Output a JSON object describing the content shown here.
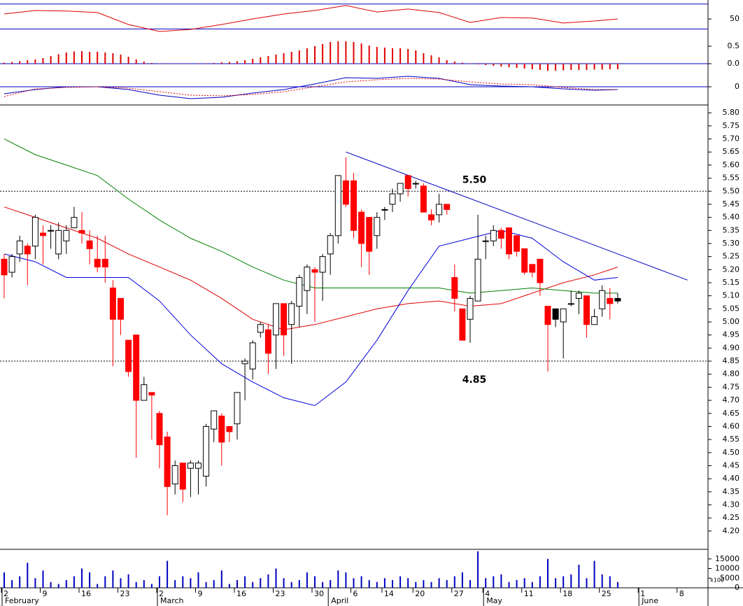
{
  "chart_data": [
    {
      "type": "line",
      "x": [
        0,
        4,
        8,
        12,
        16,
        20,
        24,
        28,
        32,
        36,
        40,
        44,
        48,
        52,
        56,
        60,
        64,
        68,
        72,
        76,
        79
      ],
      "ylim": [
        25,
        88
      ],
      "yticks": [
        50
      ],
      "hlines": [
        80,
        30
      ],
      "series": [
        {
          "color": "#e00000",
          "values": [
            60,
            67,
            66,
            63,
            39,
            25,
            29,
            39,
            50,
            60,
            67,
            77,
            64,
            70,
            63,
            43,
            53,
            52,
            42,
            46,
            50
          ]
        }
      ]
    },
    {
      "type": "bar",
      "color": "#e00000",
      "ylim": [
        -0.38,
        0.92
      ],
      "yticks": [
        {
          "value": 0.5,
          "label": "0.5"
        },
        {
          "value": 0,
          "label": "0.0"
        }
      ],
      "hlines": [
        0
      ],
      "values": [
        0.03,
        0.05,
        0.07,
        0.1,
        0.12,
        0.16,
        0.22,
        0.27,
        0.32,
        0.35,
        0.36,
        0.34,
        0.34,
        0.32,
        0.3,
        0.26,
        0.2,
        0.12,
        0.06,
        0.02,
        0.01,
        0,
        -0.01,
        -0.01,
        0,
        0.01,
        0.01,
        0.02,
        0.04,
        0.05,
        0.07,
        0.1,
        0.14,
        0.18,
        0.22,
        0.26,
        0.3,
        0.34,
        0.38,
        0.44,
        0.5,
        0.56,
        0.62,
        0.64,
        0.64,
        0.62,
        0.58,
        0.52,
        0.48,
        0.46,
        0.44,
        0.44,
        0.42,
        0.38,
        0.3,
        0.24,
        0.18,
        0.1,
        0.06,
        0.03,
        0.01,
        -0.02,
        -0.04,
        -0.06,
        -0.08,
        -0.1,
        -0.12,
        -0.14,
        -0.16,
        -0.18,
        -0.2,
        -0.2,
        -0.19,
        -0.18,
        -0.18,
        -0.18,
        -0.17,
        -0.17,
        -0.16,
        -0.16
      ]
    },
    {
      "type": "line",
      "x": [
        0,
        4,
        8,
        12,
        16,
        20,
        24,
        28,
        32,
        36,
        40,
        44,
        48,
        52,
        56,
        60,
        64,
        68,
        72,
        76,
        79
      ],
      "ylim": [
        -0.26,
        0.14
      ],
      "yticks": [
        0
      ],
      "hlines": [
        0
      ],
      "series": [
        {
          "color": "#0000c0",
          "values": [
            -0.1,
            -0.04,
            0,
            0,
            -0.04,
            -0.12,
            -0.17,
            -0.15,
            -0.09,
            -0.04,
            0.04,
            0.13,
            0.12,
            0.15,
            0.12,
            0.03,
            0.01,
            0,
            -0.03,
            -0.05,
            -0.04
          ]
        },
        {
          "color": "#e00000",
          "dash": true,
          "values": [
            -0.14,
            -0.03,
            -0.01,
            0,
            -0.02,
            -0.07,
            -0.12,
            -0.13,
            -0.11,
            -0.07,
            0,
            0.07,
            0.1,
            0.12,
            0.11,
            0.07,
            0.04,
            0.03,
            -0.01,
            -0.04,
            -0.04
          ]
        }
      ]
    },
    {
      "type": "candlestick",
      "categories": [
        "2",
        null,
        null,
        null,
        null,
        "9",
        null,
        null,
        null,
        null,
        "16",
        null,
        null,
        null,
        null,
        "23",
        null,
        null,
        null,
        null,
        "2",
        null,
        null,
        null,
        null,
        "9",
        null,
        null,
        null,
        null,
        "16",
        null,
        null,
        null,
        null,
        "23",
        null,
        null,
        null,
        null,
        "30",
        null,
        null,
        null,
        null,
        "6",
        null,
        null,
        null,
        "14",
        null,
        null,
        null,
        "20",
        null,
        null,
        null,
        null,
        "27",
        null,
        null,
        null,
        "4",
        null,
        null,
        null,
        null,
        "11",
        null,
        null,
        null,
        null,
        "18",
        null,
        null,
        null,
        null,
        "25",
        null,
        null,
        null,
        null,
        "1",
        null,
        null,
        null,
        null,
        "8"
      ],
      "month_labels": [
        "February",
        null,
        null,
        null,
        null,
        null,
        null,
        null,
        null,
        null,
        null,
        null,
        null,
        null,
        null,
        null,
        null,
        null,
        null,
        null,
        "March",
        null,
        null,
        null,
        null,
        null,
        null,
        null,
        null,
        null,
        null,
        null,
        null,
        null,
        null,
        null,
        null,
        null,
        null,
        null,
        null,
        null,
        "April",
        null,
        null,
        null,
        null,
        null,
        null,
        null,
        null,
        null,
        null,
        null,
        null,
        null,
        null,
        null,
        null,
        null,
        null,
        null,
        "May",
        null,
        null,
        null,
        null,
        null,
        null,
        null,
        null,
        null,
        null,
        null,
        null,
        null,
        null,
        null,
        null,
        null,
        null,
        null,
        "June",
        null,
        null,
        null,
        null,
        null
      ],
      "open": [
        5.24,
        5.19,
        5.26,
        5.29,
        5.29,
        5.34,
        5.35,
        5.26,
        5.31,
        5.36,
        5.35,
        5.31,
        5.24,
        5.24,
        5.13,
        5.09,
        4.93,
        4.95,
        4.7,
        4.73,
        4.65,
        4.56,
        4.38,
        4.46,
        4.44,
        4.44,
        4.41,
        4.59,
        4.64,
        4.6,
        4.61,
        4.84,
        4.82,
        4.96,
        4.97,
        4.95,
        5.07,
        4.99,
        5.06,
        5.12,
        5.2,
        5.19,
        5.26,
        5.33,
        5.54,
        5.54,
        5.42,
        5.4,
        5.33,
        5.43,
        5.45,
        5.49,
        5.56,
        5.53,
        5.52,
        5.41,
        5.41,
        5.45,
        5.17,
        5.05,
        5.01,
        5.08,
        5.31,
        5.31,
        5.35,
        5.36,
        5.33,
        5.28,
        5.22,
        5.24,
        5.06,
        5.05,
        5.0,
        5.07,
        5.09,
        5.1,
        4.99,
        5.05,
        5.09,
        5.09,
        null,
        null,
        null,
        null,
        null,
        null,
        null,
        null
      ],
      "high": [
        5.26,
        5.26,
        5.33,
        5.3,
        5.41,
        5.37,
        5.37,
        5.38,
        5.37,
        5.44,
        5.42,
        5.35,
        5.33,
        5.33,
        5.16,
        5.09,
        4.93,
        4.95,
        4.79,
        4.73,
        4.66,
        4.58,
        4.47,
        4.46,
        4.47,
        4.47,
        4.61,
        4.66,
        4.65,
        4.6,
        4.73,
        4.86,
        4.93,
        5.0,
        4.99,
        5.07,
        5.07,
        5.08,
        5.18,
        5.22,
        5.21,
        5.26,
        5.34,
        5.56,
        5.63,
        5.57,
        5.43,
        5.4,
        5.42,
        5.44,
        5.51,
        5.53,
        5.56,
        5.54,
        5.53,
        5.43,
        5.49,
        5.45,
        5.22,
        5.05,
        5.1,
        5.41,
        5.33,
        5.37,
        5.36,
        5.36,
        5.33,
        5.28,
        5.22,
        5.24,
        5.06,
        5.05,
        5.05,
        5.12,
        5.12,
        5.1,
        5.05,
        5.14,
        5.13,
        5.11,
        null,
        null,
        null,
        null,
        null,
        null,
        null,
        null
      ],
      "low": [
        5.09,
        5.17,
        5.23,
        5.14,
        5.24,
        5.22,
        5.28,
        5.24,
        5.26,
        5.36,
        5.3,
        5.22,
        5.19,
        5.15,
        4.83,
        4.95,
        4.79,
        4.48,
        4.7,
        4.55,
        4.44,
        4.26,
        4.34,
        4.31,
        4.33,
        4.34,
        4.37,
        4.54,
        4.45,
        4.54,
        4.55,
        4.7,
        4.78,
        4.94,
        4.8,
        4.82,
        4.87,
        4.84,
        4.98,
        5.03,
        5.0,
        5.08,
        5.18,
        5.3,
        5.44,
        5.32,
        5.21,
        5.18,
        5.28,
        5.39,
        5.42,
        5.46,
        5.48,
        5.51,
        5.42,
        5.37,
        5.38,
        5.41,
        5.04,
        4.93,
        4.92,
        5.08,
        5.24,
        5.29,
        5.28,
        5.24,
        5.25,
        5.18,
        5.17,
        5.1,
        4.81,
        4.98,
        4.86,
        5.06,
        5.03,
        4.94,
        4.99,
        5.02,
        5.01,
        5.07,
        null,
        null,
        null,
        null,
        null,
        null,
        null,
        null
      ],
      "close": [
        5.18,
        5.25,
        5.31,
        5.26,
        5.4,
        5.33,
        5.35,
        5.35,
        5.35,
        5.4,
        5.34,
        5.28,
        5.21,
        5.21,
        5.01,
        5.01,
        4.81,
        4.7,
        4.76,
        4.72,
        4.53,
        4.37,
        4.45,
        4.36,
        4.46,
        4.46,
        4.6,
        4.66,
        4.54,
        4.58,
        4.73,
        4.85,
        4.92,
        4.99,
        4.88,
        5.07,
        4.95,
        5.07,
        5.17,
        5.21,
        5.19,
        5.25,
        5.33,
        5.56,
        5.45,
        5.35,
        5.3,
        5.27,
        5.4,
        5.43,
        5.49,
        5.53,
        5.51,
        5.53,
        5.42,
        5.39,
        5.45,
        5.43,
        5.09,
        4.93,
        5.09,
        5.24,
        5.31,
        5.35,
        5.32,
        5.26,
        5.27,
        5.19,
        5.19,
        5.15,
        4.99,
        5.01,
        5.05,
        5.07,
        5.11,
        4.99,
        5.02,
        5.12,
        5.07,
        5.08,
        null,
        null,
        null,
        null,
        null,
        null,
        null,
        null
      ],
      "colors": [
        "#ff0000",
        "#ffffff",
        "#ffffff",
        "#ff0000",
        "#ffffff",
        "#ff0000",
        "#ffffff",
        "#ffffff",
        "#ffffff",
        "#ffffff",
        "#ff0000",
        "#ff0000",
        "#ff0000",
        "#ff0000",
        "#ff0000",
        "#ff0000",
        "#ff0000",
        "#ff0000",
        "#ffffff",
        "#ff0000",
        "#ff0000",
        "#ff0000",
        "#ffffff",
        "#ff0000",
        "#ffffff",
        "#ffffff",
        "#ffffff",
        "#ffffff",
        "#ff0000",
        "#ff0000",
        "#ffffff",
        "#ffffff",
        "#ffffff",
        "#ffffff",
        "#ff0000",
        "#ffffff",
        "#ff0000",
        "#ffffff",
        "#ffffff",
        "#ffffff",
        "#ff0000",
        "#ffffff",
        "#ffffff",
        "#ffffff",
        "#ff0000",
        "#ff0000",
        "#ff0000",
        "#ff0000",
        "#ffffff",
        "#ffffff",
        "#ffffff",
        "#ffffff",
        "#ff0000",
        "#000000",
        "#ff0000",
        "#ff0000",
        "#ffffff",
        "#ff0000",
        "#ff0000",
        "#ff0000",
        "#ffffff",
        "#ffffff",
        "#ffffff",
        "#ffffff",
        "#ff0000",
        "#ff0000",
        "#ff0000",
        "#ff0000",
        "#ff0000",
        "#ff0000",
        "#ff0000",
        "#000000",
        "#ffffff",
        "#ffffff",
        "#ffffff",
        "#ff0000",
        "#ffffff",
        "#ffffff",
        "#ff0000",
        "#000000",
        null,
        null,
        null,
        null,
        null,
        null,
        null,
        null
      ],
      "ylim": [
        4.13,
        5.83
      ],
      "yticks": [
        {
          "value": 5.8,
          "label": "5.80"
        },
        {
          "value": 5.75,
          "label": "5.75"
        },
        {
          "value": 5.7,
          "label": "5.70"
        },
        {
          "value": 5.65,
          "label": "5.65"
        },
        {
          "value": 5.6,
          "label": "5.60"
        },
        {
          "value": 5.55,
          "label": "5.55"
        },
        {
          "value": 5.5,
          "label": "5.50"
        },
        {
          "value": 5.45,
          "label": "5.45"
        },
        {
          "value": 5.4,
          "label": "5.40"
        },
        {
          "value": 5.35,
          "label": "5.35"
        },
        {
          "value": 5.3,
          "label": "5.30"
        },
        {
          "value": 5.25,
          "label": "5.25"
        },
        {
          "value": 5.2,
          "label": "5.20"
        },
        {
          "value": 5.15,
          "label": "5.15"
        },
        {
          "value": 5.1,
          "label": "5.10"
        },
        {
          "value": 5.05,
          "label": "5.05"
        },
        {
          "value": 5,
          "label": "5.00"
        },
        {
          "value": 4.95,
          "label": "4.95"
        },
        {
          "value": 4.9,
          "label": "4.90"
        },
        {
          "value": 4.85,
          "label": "4.85"
        },
        {
          "value": 4.8,
          "label": "4.80"
        },
        {
          "value": 4.75,
          "label": "4.75"
        },
        {
          "value": 4.7,
          "label": "4.70"
        },
        {
          "value": 4.65,
          "label": "4.65"
        },
        {
          "value": 4.6,
          "label": "4.60"
        },
        {
          "value": 4.55,
          "label": "4.55"
        },
        {
          "value": 4.5,
          "label": "4.50"
        },
        {
          "value": 4.45,
          "label": "4.45"
        },
        {
          "value": 4.4,
          "label": "4.40"
        },
        {
          "value": 4.35,
          "label": "4.35"
        },
        {
          "value": 4.3,
          "label": "4.30"
        },
        {
          "value": 4.25,
          "label": "4.25"
        },
        {
          "value": 4.2,
          "label": "4.20"
        }
      ],
      "hlines": [
        {
          "value": 5.5,
          "label": "5.50"
        },
        {
          "value": 4.85,
          "label": "4.85"
        }
      ],
      "lines": {
        "x": [
          0,
          4,
          8,
          12,
          16,
          20,
          24,
          28,
          32,
          36,
          40,
          44,
          48,
          52,
          56,
          60,
          64,
          68,
          72,
          76,
          79
        ],
        "series": [
          {
            "color": "#e00000",
            "values": [
              5.44,
              5.4,
              5.36,
              5.32,
              5.26,
              5.21,
              5.16,
              5.09,
              5.01,
              4.97,
              4.99,
              5.02,
              5.05,
              5.07,
              5.08,
              5.06,
              5.07,
              5.11,
              5.15,
              5.18,
              5.21
            ]
          },
          {
            "color": "#008000",
            "values": [
              5.7,
              5.64,
              5.6,
              5.56,
              5.47,
              5.39,
              5.32,
              5.27,
              5.21,
              5.16,
              5.13,
              5.13,
              5.13,
              5.13,
              5.13,
              5.11,
              5.12,
              5.13,
              5.12,
              5.11,
              5.11
            ]
          },
          {
            "color": "#0000e0",
            "values": [
              5.26,
              5.23,
              5.17,
              5.17,
              5.17,
              5.08,
              4.95,
              4.84,
              4.77,
              4.71,
              4.68,
              4.77,
              4.93,
              5.12,
              5.29,
              5.32,
              5.35,
              5.32,
              5.23,
              5.16,
              5.17
            ]
          }
        ]
      },
      "trendline": {
        "color": "#0000c0",
        "x": [
          44,
          88
        ],
        "values": [
          5.65,
          5.16
        ]
      }
    },
    {
      "type": "bar",
      "color": "#0000c0",
      "ylim": [
        0,
        20000
      ],
      "yticks": [
        0,
        5000,
        10000,
        15000
      ],
      "unit_label": "x100",
      "values": [
        8000,
        4000,
        6000,
        13000,
        5000,
        9000,
        3000,
        2000,
        4000,
        6000,
        10000,
        8000,
        2000,
        6000,
        9000,
        5000,
        7000,
        3000,
        4000,
        2000,
        6000,
        14000,
        4000,
        6000,
        5000,
        8000,
        3000,
        4000,
        9000,
        2000,
        4000,
        6000,
        3000,
        5000,
        7000,
        10000,
        5000,
        3000,
        4000,
        8000,
        6000,
        3000,
        4000,
        9000,
        8000,
        5000,
        6000,
        4000,
        3000,
        5000,
        4000,
        6000,
        5000,
        3000,
        4000,
        3000,
        5000,
        4000,
        6000,
        8000,
        4000,
        19000,
        5000,
        6000,
        7000,
        3000,
        4000,
        5000,
        3000,
        6000,
        15000,
        5000,
        6000,
        7000,
        12000,
        5000,
        14000,
        7000,
        6000,
        3000
      ]
    }
  ]
}
